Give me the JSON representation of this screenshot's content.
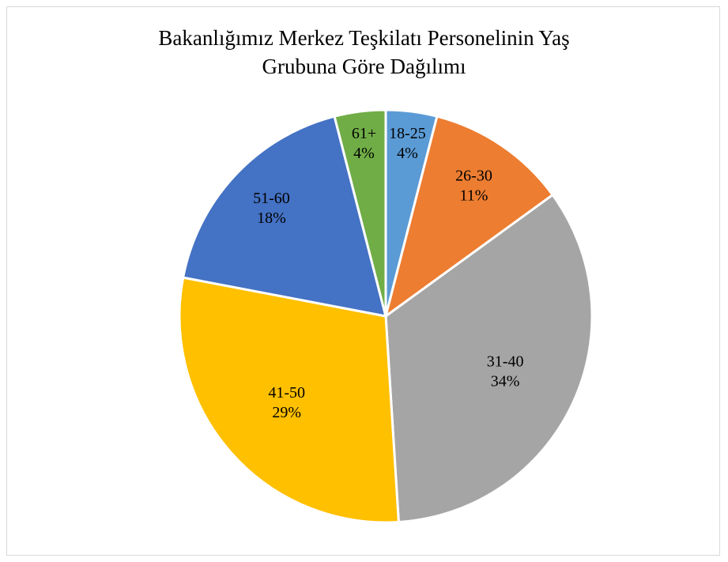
{
  "chart_data": {
    "type": "pie",
    "title": "Bakanlığımız Merkez Teşkilatı Personelinin Yaş Grubuna Göre Dağılımı",
    "categories": [
      "18-25",
      "26-30",
      "31-40",
      "41-50",
      "51-60",
      "61+"
    ],
    "values": [
      4,
      11,
      34,
      29,
      18,
      4
    ],
    "value_labels": [
      "4%",
      "11%",
      "34%",
      "29%",
      "18%",
      "4%"
    ],
    "colors": [
      "#5b9bd5",
      "#ed7d31",
      "#a5a5a5",
      "#ffc000",
      "#4472c4",
      "#70ad47"
    ]
  }
}
